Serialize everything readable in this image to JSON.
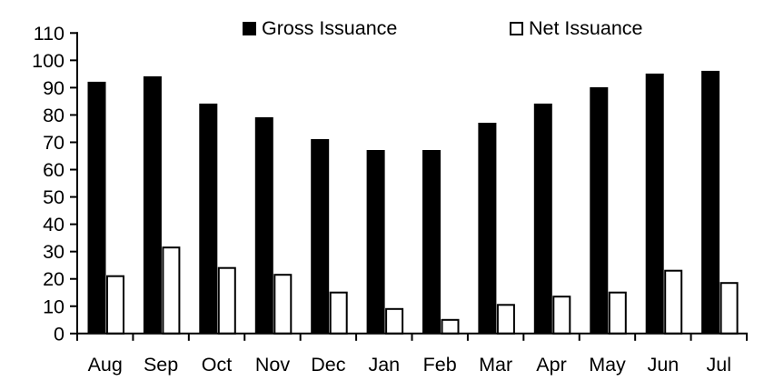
{
  "legend": {
    "gross_label": "Gross Issuance",
    "net_label": "Net Issuance"
  },
  "colors": {
    "background": "#ffffff",
    "axis": "#000000",
    "text": "#000000",
    "gross_fill": "#000000",
    "net_fill": "#ffffff",
    "net_border": "#000000"
  },
  "chart_data": {
    "type": "bar",
    "title": "",
    "xlabel": "",
    "ylabel": "",
    "categories": [
      "Aug",
      "Sep",
      "Oct",
      "Nov",
      "Dec",
      "Jan",
      "Feb",
      "Mar",
      "Apr",
      "May",
      "Jun",
      "Jul"
    ],
    "series": [
      {
        "name": "Gross Issuance",
        "fill": "#000000",
        "values": [
          92,
          94,
          84,
          79,
          71,
          67,
          67,
          77,
          84,
          90,
          95,
          96
        ]
      },
      {
        "name": "Net Issuance",
        "fill": "#ffffff",
        "values": [
          21,
          31.5,
          24,
          21.5,
          15,
          9,
          5,
          10.5,
          13.5,
          15,
          23,
          18.5
        ]
      }
    ],
    "ylim": [
      0,
      110
    ],
    "ytick_step": 10,
    "grid": false,
    "legend_position": "top-center"
  }
}
